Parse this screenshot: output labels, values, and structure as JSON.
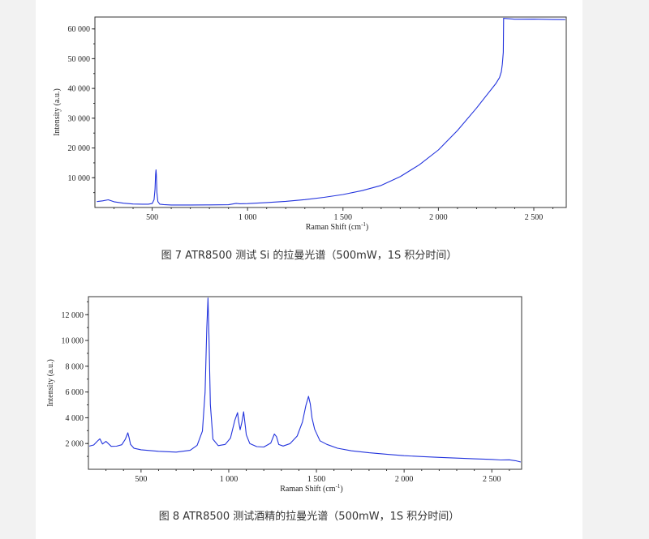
{
  "chart_data": [
    {
      "type": "line",
      "title": "",
      "xlabel": "Raman Shift (cm",
      "xlabel_sup": "-1",
      "xlabel_tail": ")",
      "ylabel": "Intensity (a.u.)",
      "xlim": [
        200,
        2670
      ],
      "ylim": [
        0,
        64000
      ],
      "xticks": [
        500,
        1000,
        1500,
        2000,
        2500
      ],
      "xtick_labels": [
        "500",
        "1 000",
        "1 500",
        "2 000",
        "2 500"
      ],
      "yticks": [
        10000,
        20000,
        30000,
        40000,
        50000,
        60000
      ],
      "ytick_labels": [
        "10 000",
        "20 000",
        "30 000",
        "40 000",
        "50 000",
        "60 000"
      ],
      "line_color": "#2233dd",
      "series": [
        {
          "x": [
            210,
            240,
            270,
            300,
            350,
            400,
            450,
            480,
            500,
            510,
            515,
            518,
            520,
            522,
            525,
            530,
            540,
            560,
            600,
            700,
            800,
            900,
            940,
            960,
            1000,
            1100,
            1200,
            1300,
            1400,
            1500,
            1600,
            1700,
            1800,
            1900,
            2000,
            2100,
            2200,
            2250,
            2300,
            2320,
            2330,
            2335,
            2340,
            2342,
            2345,
            2400,
            2500,
            2600,
            2665
          ],
          "y": [
            2000,
            2300,
            2700,
            2100,
            1600,
            1300,
            1200,
            1150,
            1300,
            2500,
            6000,
            11000,
            12500,
            11000,
            5000,
            2000,
            1200,
            1100,
            1000,
            1000,
            1000,
            1000,
            1400,
            1200,
            1200,
            1500,
            1900,
            2500,
            3300,
            4300,
            5700,
            7500,
            10500,
            14500,
            19500,
            26000,
            33500,
            37500,
            41500,
            43500,
            45500,
            48000,
            52000,
            63500,
            63500,
            63300,
            63400,
            63300,
            63300
          ]
        }
      ]
    },
    {
      "type": "line",
      "title": "",
      "xlabel": "Raman Shift (cm",
      "xlabel_sup": "-1",
      "xlabel_tail": ")",
      "ylabel": "Intensity (a.u.)",
      "xlim": [
        200,
        2670
      ],
      "ylim": [
        0,
        13400
      ],
      "xticks": [
        500,
        1000,
        1500,
        2000,
        2500
      ],
      "xtick_labels": [
        "500",
        "1 000",
        "1 500",
        "2 000",
        "2 500"
      ],
      "yticks": [
        2000,
        4000,
        6000,
        8000,
        10000,
        12000
      ],
      "ytick_labels": [
        "2 000",
        "4 000",
        "6 000",
        "8 000",
        "10 000",
        "12 000"
      ],
      "line_color": "#2233dd",
      "series": [
        {
          "x": [
            205,
            230,
            250,
            265,
            280,
            300,
            330,
            360,
            390,
            410,
            425,
            432,
            440,
            460,
            500,
            600,
            700,
            780,
            820,
            850,
            865,
            875,
            882,
            888,
            895,
            910,
            940,
            980,
            1010,
            1035,
            1050,
            1057,
            1065,
            1075,
            1085,
            1092,
            1100,
            1120,
            1160,
            1200,
            1240,
            1260,
            1272,
            1285,
            1310,
            1350,
            1390,
            1420,
            1440,
            1455,
            1465,
            1475,
            1490,
            1520,
            1560,
            1620,
            1700,
            1800,
            1900,
            2000,
            2100,
            2200,
            2300,
            2400,
            2500,
            2550,
            2600,
            2640,
            2665
          ],
          "y": [
            1800,
            1900,
            2200,
            2400,
            2000,
            2200,
            1800,
            1800,
            1900,
            2300,
            2800,
            2400,
            1900,
            1600,
            1500,
            1400,
            1350,
            1500,
            1900,
            3000,
            6000,
            11000,
            13300,
            10000,
            5000,
            2300,
            1800,
            1900,
            2400,
            3800,
            4400,
            3700,
            3100,
            3700,
            4500,
            3700,
            2700,
            2000,
            1750,
            1700,
            2000,
            2700,
            2500,
            1900,
            1800,
            2000,
            2600,
            3700,
            5000,
            5700,
            5100,
            4000,
            3100,
            2200,
            1900,
            1600,
            1400,
            1250,
            1150,
            1050,
            1000,
            950,
            900,
            850,
            800,
            750,
            750,
            650,
            550
          ]
        }
      ]
    }
  ],
  "captions": [
    "图  7 ATR8500 测试 Si 的拉曼光谱（500mW，1S 积分时间）",
    "图  8 ATR8500 测试酒精的拉曼光谱（500mW，1S 积分时间）"
  ]
}
